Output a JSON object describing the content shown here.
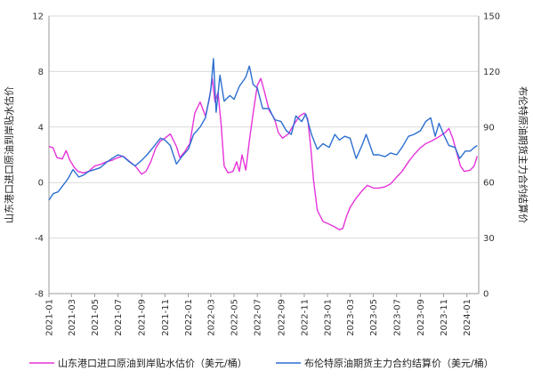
{
  "chart_data": {
    "type": "line",
    "title": "",
    "y_left": {
      "label": "山东港口进口原油到岸贴水估价",
      "min": -8,
      "max": 12,
      "ticks": [
        -8,
        -4,
        0,
        4,
        8,
        12
      ]
    },
    "y_right": {
      "label": "布伦特原油期货主力合约结算价",
      "min": 0,
      "max": 150,
      "ticks": [
        0,
        30,
        60,
        90,
        120,
        150
      ]
    },
    "x_axis": {
      "start": "2021-01",
      "end": "2024-02",
      "tick_labels": [
        "2021-01",
        "2021-03",
        "2021-05",
        "2021-07",
        "2021-09",
        "2021-11",
        "2022-01",
        "2022-03",
        "2022-05",
        "2022-07",
        "2022-09",
        "2022-11",
        "2023-01",
        "2023-03",
        "2023-05",
        "2023-07",
        "2023-09",
        "2023-11",
        "2024-01"
      ]
    },
    "grid": "horizontal",
    "legend_position": "bottom",
    "series": [
      {
        "name": "山东港口进口原油到岸贴水估价（美元/桶）",
        "axis": "left",
        "color": "#e633d9",
        "points": [
          [
            "2021-01-01",
            2.6
          ],
          [
            "2021-01-12",
            2.5
          ],
          [
            "2021-01-22",
            1.8
          ],
          [
            "2021-02-05",
            1.7
          ],
          [
            "2021-02-15",
            2.3
          ],
          [
            "2021-02-25",
            1.6
          ],
          [
            "2021-03-08",
            1.1
          ],
          [
            "2021-03-18",
            0.8
          ],
          [
            "2021-04-01",
            0.7
          ],
          [
            "2021-04-15",
            0.8
          ],
          [
            "2021-05-01",
            1.2
          ],
          [
            "2021-05-15",
            1.3
          ],
          [
            "2021-06-01",
            1.5
          ],
          [
            "2021-06-15",
            1.6
          ],
          [
            "2021-07-01",
            1.8
          ],
          [
            "2021-07-15",
            1.9
          ],
          [
            "2021-08-01",
            1.5
          ],
          [
            "2021-08-15",
            1.2
          ],
          [
            "2021-09-01",
            0.6
          ],
          [
            "2021-09-12",
            0.8
          ],
          [
            "2021-09-25",
            1.5
          ],
          [
            "2021-10-08",
            2.5
          ],
          [
            "2021-10-20",
            3.0
          ],
          [
            "2021-11-01",
            3.2
          ],
          [
            "2021-11-15",
            3.5
          ],
          [
            "2021-12-01",
            2.6
          ],
          [
            "2021-12-10",
            1.8
          ],
          [
            "2021-12-22",
            2.2
          ],
          [
            "2022-01-05",
            2.8
          ],
          [
            "2022-01-18",
            5.0
          ],
          [
            "2022-02-01",
            5.8
          ],
          [
            "2022-02-15",
            4.8
          ],
          [
            "2022-02-25",
            6.0
          ],
          [
            "2022-03-05",
            7.5
          ],
          [
            "2022-03-12",
            5.8
          ],
          [
            "2022-03-20",
            6.5
          ],
          [
            "2022-03-28",
            4.2
          ],
          [
            "2022-04-05",
            1.2
          ],
          [
            "2022-04-15",
            0.7
          ],
          [
            "2022-04-28",
            0.8
          ],
          [
            "2022-05-08",
            1.5
          ],
          [
            "2022-05-15",
            0.8
          ],
          [
            "2022-05-22",
            2.0
          ],
          [
            "2022-06-01",
            0.9
          ],
          [
            "2022-06-10",
            3.0
          ],
          [
            "2022-06-20",
            5.0
          ],
          [
            "2022-07-01",
            7.0
          ],
          [
            "2022-07-10",
            7.5
          ],
          [
            "2022-07-20",
            6.5
          ],
          [
            "2022-08-01",
            5.2
          ],
          [
            "2022-08-15",
            4.6
          ],
          [
            "2022-08-25",
            3.6
          ],
          [
            "2022-09-05",
            3.2
          ],
          [
            "2022-09-20",
            3.5
          ],
          [
            "2022-10-05",
            4.2
          ],
          [
            "2022-10-20",
            4.8
          ],
          [
            "2022-11-01",
            5.0
          ],
          [
            "2022-11-10",
            4.6
          ],
          [
            "2022-11-18",
            2.5
          ],
          [
            "2022-11-25",
            0.2
          ],
          [
            "2022-12-05",
            -2.0
          ],
          [
            "2022-12-20",
            -2.8
          ],
          [
            "2023-01-05",
            -3.0
          ],
          [
            "2023-01-20",
            -3.2
          ],
          [
            "2023-02-01",
            -3.4
          ],
          [
            "2023-02-10",
            -3.3
          ],
          [
            "2023-02-20",
            -2.4
          ],
          [
            "2023-03-01",
            -1.8
          ],
          [
            "2023-03-15",
            -1.2
          ],
          [
            "2023-04-01",
            -0.6
          ],
          [
            "2023-04-15",
            -0.2
          ],
          [
            "2023-05-01",
            -0.4
          ],
          [
            "2023-05-15",
            -0.4
          ],
          [
            "2023-06-01",
            -0.3
          ],
          [
            "2023-06-15",
            -0.1
          ],
          [
            "2023-07-01",
            0.4
          ],
          [
            "2023-07-15",
            0.8
          ],
          [
            "2023-08-01",
            1.5
          ],
          [
            "2023-08-15",
            2.0
          ],
          [
            "2023-09-01",
            2.5
          ],
          [
            "2023-09-15",
            2.8
          ],
          [
            "2023-10-01",
            3.0
          ],
          [
            "2023-10-20",
            3.3
          ],
          [
            "2023-11-05",
            3.6
          ],
          [
            "2023-11-15",
            3.9
          ],
          [
            "2023-11-25",
            3.2
          ],
          [
            "2023-12-05",
            2.2
          ],
          [
            "2023-12-15",
            1.2
          ],
          [
            "2023-12-25",
            0.8
          ],
          [
            "2024-01-10",
            0.9
          ],
          [
            "2024-01-20",
            1.2
          ],
          [
            "2024-01-28",
            1.9
          ]
        ]
      },
      {
        "name": "布伦特原油期货主力合约结算价（美元/桶）",
        "axis": "right",
        "color": "#2c6fd1",
        "points": [
          [
            "2021-01-01",
            50.5
          ],
          [
            "2021-01-12",
            54.0
          ],
          [
            "2021-01-25",
            55.0
          ],
          [
            "2021-02-05",
            58.0
          ],
          [
            "2021-02-20",
            62.0
          ],
          [
            "2021-03-05",
            67.0
          ],
          [
            "2021-03-20",
            63.0
          ],
          [
            "2021-04-01",
            64.0
          ],
          [
            "2021-04-15",
            66.0
          ],
          [
            "2021-05-01",
            67.0
          ],
          [
            "2021-05-15",
            68.0
          ],
          [
            "2021-06-01",
            71.0
          ],
          [
            "2021-06-15",
            73.0
          ],
          [
            "2021-07-01",
            75.0
          ],
          [
            "2021-07-15",
            74.0
          ],
          [
            "2021-08-01",
            71.0
          ],
          [
            "2021-08-15",
            69.0
          ],
          [
            "2021-09-01",
            72.0
          ],
          [
            "2021-09-15",
            75.0
          ],
          [
            "2021-10-01",
            79.0
          ],
          [
            "2021-10-20",
            84.0
          ],
          [
            "2021-11-01",
            83.0
          ],
          [
            "2021-11-15",
            80.0
          ],
          [
            "2021-12-01",
            70.0
          ],
          [
            "2021-12-15",
            74.0
          ],
          [
            "2022-01-01",
            78.0
          ],
          [
            "2022-01-15",
            86.0
          ],
          [
            "2022-02-01",
            90.0
          ],
          [
            "2022-02-15",
            95.0
          ],
          [
            "2022-03-01",
            110.0
          ],
          [
            "2022-03-08",
            127.0
          ],
          [
            "2022-03-15",
            98.0
          ],
          [
            "2022-03-25",
            118.0
          ],
          [
            "2022-04-05",
            104.0
          ],
          [
            "2022-04-20",
            107.0
          ],
          [
            "2022-05-01",
            105.0
          ],
          [
            "2022-05-15",
            112.0
          ],
          [
            "2022-06-01",
            117.0
          ],
          [
            "2022-06-10",
            123.0
          ],
          [
            "2022-06-20",
            113.0
          ],
          [
            "2022-07-01",
            111.0
          ],
          [
            "2022-07-15",
            100.0
          ],
          [
            "2022-08-01",
            100.0
          ],
          [
            "2022-08-15",
            94.0
          ],
          [
            "2022-09-01",
            93.0
          ],
          [
            "2022-09-15",
            88.0
          ],
          [
            "2022-09-28",
            86.0
          ],
          [
            "2022-10-10",
            96.0
          ],
          [
            "2022-10-25",
            93.0
          ],
          [
            "2022-11-05",
            97.0
          ],
          [
            "2022-11-20",
            86.0
          ],
          [
            "2022-12-05",
            78.0
          ],
          [
            "2022-12-20",
            81.0
          ],
          [
            "2023-01-05",
            79.0
          ],
          [
            "2023-01-20",
            86.0
          ],
          [
            "2023-02-01",
            83.0
          ],
          [
            "2023-02-15",
            85.0
          ],
          [
            "2023-03-01",
            84.0
          ],
          [
            "2023-03-17",
            73.0
          ],
          [
            "2023-04-01",
            80.0
          ],
          [
            "2023-04-12",
            86.0
          ],
          [
            "2023-05-01",
            75.0
          ],
          [
            "2023-05-15",
            75.0
          ],
          [
            "2023-06-01",
            74.0
          ],
          [
            "2023-06-15",
            76.0
          ],
          [
            "2023-07-01",
            75.0
          ],
          [
            "2023-07-15",
            79.0
          ],
          [
            "2023-08-01",
            85.0
          ],
          [
            "2023-08-15",
            86.0
          ],
          [
            "2023-09-01",
            88.0
          ],
          [
            "2023-09-15",
            93.0
          ],
          [
            "2023-09-28",
            95.0
          ],
          [
            "2023-10-10",
            85.0
          ],
          [
            "2023-10-20",
            92.0
          ],
          [
            "2023-11-01",
            86.0
          ],
          [
            "2023-11-15",
            80.0
          ],
          [
            "2023-12-01",
            79.0
          ],
          [
            "2023-12-13",
            73.0
          ],
          [
            "2023-12-28",
            77.0
          ],
          [
            "2024-01-10",
            77.0
          ],
          [
            "2024-01-20",
            79.0
          ],
          [
            "2024-01-28",
            80.0
          ]
        ]
      }
    ]
  }
}
